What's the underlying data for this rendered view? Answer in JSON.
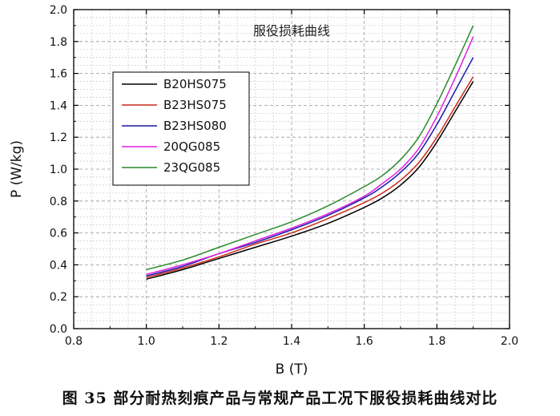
{
  "caption": "图 35 部分耐热刻痕产品与常规产品工况下服役损耗曲线对比",
  "chart_data": {
    "type": "line",
    "title": "服役损耗曲线",
    "xlabel": "B (T)",
    "ylabel": "P (W/kg)",
    "xlim": [
      0.8,
      2.0
    ],
    "ylim": [
      0.0,
      2.0
    ],
    "xticks": [
      "0.8",
      "1.0",
      "1.2",
      "1.4",
      "1.6",
      "1.8",
      "2.0"
    ],
    "yticks": [
      "0.0",
      "0.2",
      "0.4",
      "0.6",
      "0.8",
      "1.0",
      "1.2",
      "1.4",
      "1.6",
      "1.8",
      "2.0"
    ],
    "grid": true,
    "legend_position": "upper-left",
    "x": [
      1.0,
      1.1,
      1.2,
      1.3,
      1.4,
      1.5,
      1.6,
      1.65,
      1.7,
      1.75,
      1.8,
      1.85,
      1.9
    ],
    "series": [
      {
        "name": "B20HS075",
        "color": "#000000",
        "values": [
          0.31,
          0.37,
          0.44,
          0.51,
          0.58,
          0.66,
          0.76,
          0.82,
          0.9,
          1.01,
          1.17,
          1.36,
          1.55
        ]
      },
      {
        "name": "B23HS075",
        "color": "#cc2a1a",
        "values": [
          0.32,
          0.38,
          0.45,
          0.53,
          0.6,
          0.69,
          0.79,
          0.85,
          0.93,
          1.04,
          1.2,
          1.39,
          1.58
        ]
      },
      {
        "name": "B23HS080",
        "color": "#1a1aa8",
        "values": [
          0.33,
          0.39,
          0.47,
          0.54,
          0.62,
          0.71,
          0.82,
          0.89,
          0.98,
          1.1,
          1.28,
          1.49,
          1.7
        ]
      },
      {
        "name": "20QG085",
        "color": "#e020e0",
        "values": [
          0.34,
          0.4,
          0.47,
          0.55,
          0.63,
          0.72,
          0.83,
          0.91,
          1.0,
          1.13,
          1.33,
          1.57,
          1.83
        ]
      },
      {
        "name": "23QG085",
        "color": "#2a8a2a",
        "values": [
          0.37,
          0.43,
          0.51,
          0.59,
          0.67,
          0.77,
          0.89,
          0.96,
          1.06,
          1.2,
          1.41,
          1.65,
          1.9
        ]
      }
    ]
  }
}
